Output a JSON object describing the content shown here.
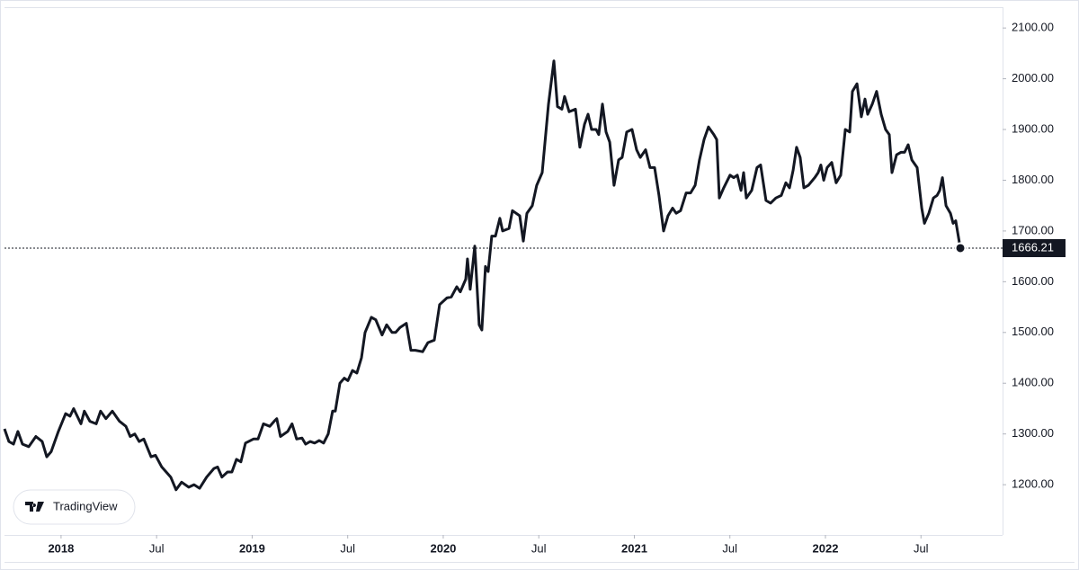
{
  "chart_data": {
    "type": "line",
    "color": "#131722",
    "brand": "TradingView",
    "x": [
      2017.704,
      2017.727,
      2017.751,
      2017.774,
      2017.798,
      2017.831,
      2017.868,
      2017.901,
      2017.925,
      2017.948,
      2017.986,
      2018.024,
      2018.047,
      2018.066,
      2018.104,
      2018.122,
      2018.151,
      2018.184,
      2018.207,
      2018.235,
      2018.268,
      2018.306,
      2018.339,
      2018.362,
      2018.386,
      2018.409,
      2018.433,
      2018.471,
      2018.494,
      2018.527,
      2018.574,
      2018.602,
      2018.631,
      2018.668,
      2018.696,
      2018.725,
      2018.762,
      2018.8,
      2018.819,
      2018.842,
      2018.871,
      2018.894,
      2018.918,
      2018.941,
      2018.965,
      2019.007,
      2019.031,
      2019.059,
      2019.092,
      2019.115,
      2019.129,
      2019.148,
      2019.186,
      2019.209,
      2019.233,
      2019.261,
      2019.28,
      2019.304,
      2019.327,
      2019.351,
      2019.374,
      2019.398,
      2019.421,
      2019.435,
      2019.459,
      2019.482,
      2019.501,
      2019.525,
      2019.548,
      2019.572,
      2019.591,
      2019.624,
      2019.647,
      2019.68,
      2019.704,
      2019.732,
      2019.751,
      2019.774,
      2019.807,
      2019.831,
      2019.854,
      2019.892,
      2019.92,
      2019.953,
      2019.981,
      2020.019,
      2020.042,
      2020.071,
      2020.089,
      2020.118,
      2020.127,
      2020.141,
      2020.165,
      2020.188,
      2020.202,
      2020.221,
      2020.235,
      2020.254,
      2020.273,
      2020.296,
      2020.311,
      2020.344,
      2020.362,
      2020.4,
      2020.419,
      2020.438,
      2020.466,
      2020.489,
      2020.518,
      2020.551,
      2020.579,
      2020.598,
      2020.621,
      2020.635,
      2020.659,
      2020.692,
      2020.715,
      2020.739,
      2020.758,
      2020.776,
      2020.8,
      2020.814,
      2020.833,
      2020.852,
      2020.871,
      2020.894,
      2020.918,
      2020.936,
      2020.96,
      2020.988,
      2021.012,
      2021.031,
      2021.059,
      2021.082,
      2021.106,
      2021.129,
      2021.153,
      2021.176,
      2021.2,
      2021.219,
      2021.242,
      2021.271,
      2021.294,
      2021.318,
      2021.341,
      2021.365,
      2021.388,
      2021.416,
      2021.431,
      2021.445,
      2021.468,
      2021.501,
      2021.52,
      2021.539,
      2021.558,
      2021.572,
      2021.586,
      2021.614,
      2021.642,
      2021.661,
      2021.689,
      2021.713,
      2021.741,
      2021.769,
      2021.793,
      2021.812,
      2021.831,
      2021.849,
      2021.868,
      2021.887,
      2021.911,
      2021.944,
      2021.962,
      2021.976,
      2021.991,
      2022.009,
      2022.033,
      2022.056,
      2022.08,
      2022.104,
      2022.127,
      2022.141,
      2022.165,
      2022.188,
      2022.207,
      2022.221,
      2022.245,
      2022.268,
      2022.292,
      2022.315,
      2022.334,
      2022.348,
      2022.372,
      2022.395,
      2022.414,
      2022.433,
      2022.452,
      2022.48,
      2022.504,
      2022.518,
      2022.541,
      2022.565,
      2022.584,
      2022.598,
      2022.612,
      2022.631,
      2022.654,
      2022.668,
      2022.682,
      2022.706
    ],
    "values": [
      1310,
      1285,
      1280,
      1305,
      1280,
      1275,
      1295,
      1285,
      1255,
      1265,
      1305,
      1340,
      1335,
      1350,
      1320,
      1345,
      1325,
      1320,
      1345,
      1330,
      1345,
      1325,
      1315,
      1295,
      1300,
      1285,
      1290,
      1255,
      1258,
      1235,
      1215,
      1190,
      1205,
      1195,
      1200,
      1193,
      1215,
      1232,
      1235,
      1215,
      1225,
      1225,
      1250,
      1245,
      1282,
      1290,
      1290,
      1320,
      1315,
      1325,
      1330,
      1295,
      1305,
      1320,
      1290,
      1292,
      1280,
      1285,
      1282,
      1287,
      1282,
      1300,
      1345,
      1345,
      1400,
      1410,
      1405,
      1425,
      1420,
      1450,
      1500,
      1530,
      1525,
      1495,
      1515,
      1500,
      1500,
      1510,
      1518,
      1465,
      1465,
      1462,
      1480,
      1485,
      1555,
      1568,
      1570,
      1590,
      1580,
      1605,
      1645,
      1585,
      1670,
      1515,
      1505,
      1630,
      1620,
      1690,
      1690,
      1725,
      1700,
      1705,
      1740,
      1730,
      1680,
      1735,
      1750,
      1790,
      1815,
      1950,
      2035,
      1945,
      1940,
      1965,
      1935,
      1940,
      1865,
      1910,
      1930,
      1900,
      1900,
      1890,
      1950,
      1895,
      1875,
      1790,
      1840,
      1845,
      1895,
      1900,
      1860,
      1845,
      1860,
      1825,
      1825,
      1770,
      1700,
      1730,
      1745,
      1735,
      1740,
      1775,
      1775,
      1790,
      1840,
      1880,
      1905,
      1890,
      1880,
      1765,
      1785,
      1810,
      1805,
      1810,
      1780,
      1815,
      1765,
      1780,
      1825,
      1830,
      1760,
      1755,
      1765,
      1770,
      1795,
      1785,
      1820,
      1865,
      1845,
      1785,
      1790,
      1805,
      1815,
      1830,
      1800,
      1825,
      1835,
      1795,
      1810,
      1900,
      1895,
      1975,
      1990,
      1925,
      1960,
      1930,
      1950,
      1975,
      1930,
      1900,
      1890,
      1815,
      1850,
      1855,
      1855,
      1870,
      1840,
      1825,
      1745,
      1715,
      1735,
      1765,
      1770,
      1780,
      1805,
      1750,
      1735,
      1715,
      1720,
      1666.21
    ],
    "xlim": [
      2017.704,
      2022.927
    ],
    "xticks": [
      2018,
      {
        "value": 2018.5,
        "label": "Jul"
      },
      2019,
      {
        "value": 2019.5,
        "label": "Jul"
      },
      2020,
      {
        "value": 2020.5,
        "label": "Jul"
      },
      2021,
      {
        "value": 2021.5,
        "label": "Jul"
      },
      2022,
      {
        "value": 2022.5,
        "label": "Jul"
      }
    ],
    "ylim": [
      1101,
      2141
    ],
    "yticks": [
      {
        "value": 1200,
        "label": "1200.00"
      },
      {
        "value": 1300,
        "label": "1300.00"
      },
      {
        "value": 1400,
        "label": "1400.00"
      },
      {
        "value": 1500,
        "label": "1500.00"
      },
      {
        "value": 1600,
        "label": "1600.00"
      },
      {
        "value": 1700,
        "label": "1700.00"
      },
      {
        "value": 1800,
        "label": "1800.00"
      },
      {
        "value": 1900,
        "label": "1900.00"
      },
      {
        "value": 2000,
        "label": "2000.00"
      },
      {
        "value": 2100,
        "label": "2100.00"
      }
    ]
  }
}
